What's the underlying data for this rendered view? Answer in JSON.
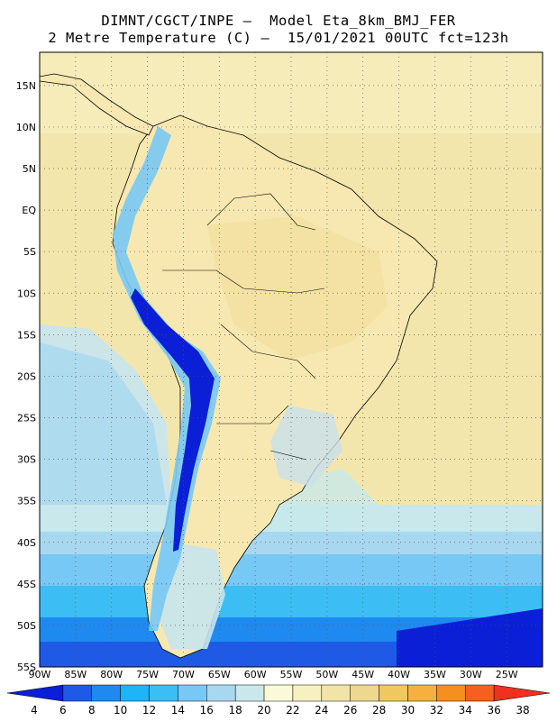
{
  "header": {
    "line1": "DIMNT/CGCT/INPE –  Model Eta_8km_BMJ_FER",
    "line2": "2 Metre Temperature (C) –  15/01/2021 00UTC fct=123h"
  },
  "axes": {
    "lat_labels": [
      "15N",
      "10N",
      "5N",
      "EQ",
      "5S",
      "10S",
      "15S",
      "20S",
      "25S",
      "30S",
      "35S",
      "40S",
      "45S",
      "50S",
      "55S"
    ],
    "lat_values": [
      15,
      10,
      5,
      0,
      -5,
      -10,
      -15,
      -20,
      -25,
      -30,
      -35,
      -40,
      -45,
      -50,
      -55
    ],
    "lon_labels": [
      "90W",
      "85W",
      "80W",
      "75W",
      "70W",
      "65W",
      "60W",
      "55W",
      "50W",
      "45W",
      "40W",
      "35W",
      "30W",
      "25W"
    ],
    "lon_values": [
      -90,
      -85,
      -80,
      -75,
      -70,
      -65,
      -60,
      -55,
      -50,
      -45,
      -40,
      -35,
      -30,
      -25
    ],
    "lon_range": [
      -90,
      -20
    ],
    "lat_range": [
      -55,
      19
    ],
    "grid": "dotted"
  },
  "colorbar": {
    "labels": [
      "4",
      "6",
      "8",
      "10",
      "12",
      "14",
      "16",
      "18",
      "20",
      "22",
      "24",
      "26",
      "28",
      "30",
      "32",
      "34",
      "36",
      "38"
    ],
    "colors": [
      "#0a1fd6",
      "#1e5ae6",
      "#1e8af0",
      "#1eb4f5",
      "#3cbef5",
      "#78c8f5",
      "#a8d8f0",
      "#c8e8ec",
      "#fafad8",
      "#f7f0c0",
      "#f2e4a8",
      "#eed890",
      "#f0c860",
      "#f5b040",
      "#f59020",
      "#f56020",
      "#f03020"
    ]
  },
  "legend": {
    "position": "bottom"
  }
}
